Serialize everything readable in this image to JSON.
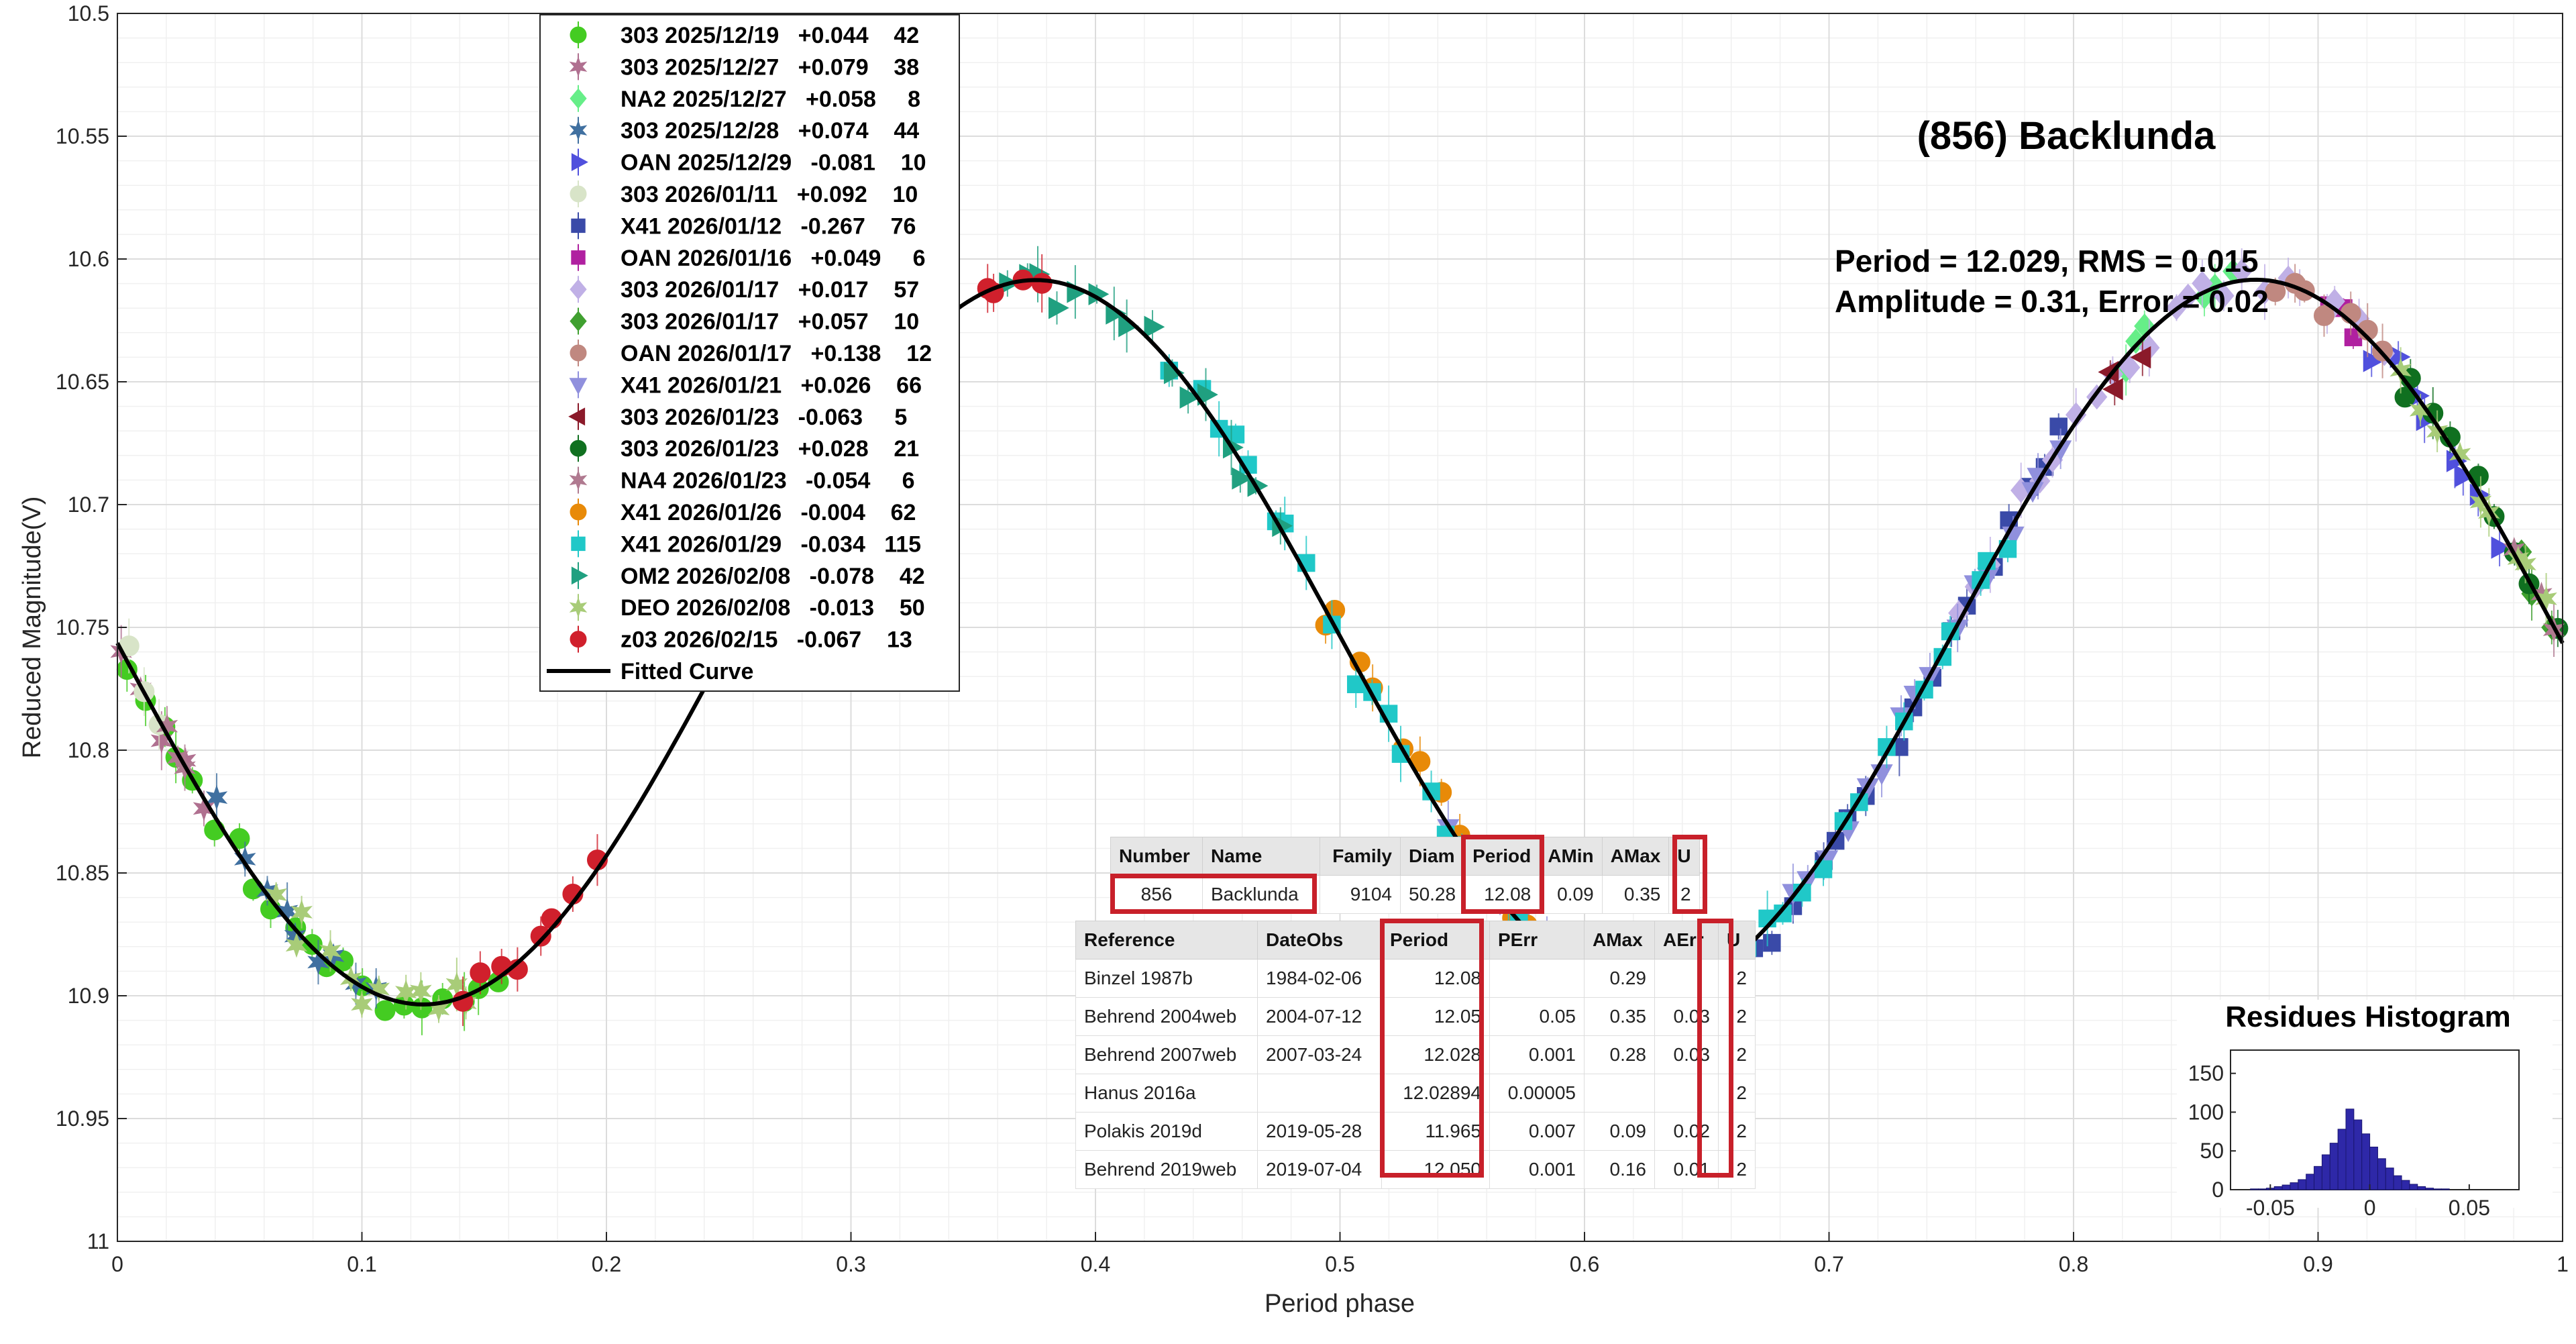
{
  "chart_data": {
    "type": "scatter",
    "title": "(856) Backlunda",
    "xlabel": "Period phase",
    "ylabel": "Reduced Magnitude(V)",
    "xlim": [
      0,
      1
    ],
    "ylim": [
      10.5,
      11
    ],
    "y_reversed": true,
    "grid": true,
    "x_ticks": [
      "0",
      "0.1",
      "0.2",
      "0.3",
      "0.4",
      "0.5",
      "0.6",
      "0.7",
      "0.8",
      "0.9",
      "1"
    ],
    "y_ticks": [
      "10.5",
      "10.55",
      "10.6",
      "10.65",
      "10.7",
      "10.75",
      "10.8",
      "10.85",
      "10.9",
      "10.95",
      "11"
    ],
    "stats_line1": "Period =  12.029, RMS = 0.015",
    "stats_line2": "Amplitude = 0.31, Error = 0.02",
    "fit": {
      "name": "Fitted Curve",
      "mean": 10.755,
      "terms": [
        [
          1,
          0.0014,
          0.0015
        ],
        [
          2,
          0.0,
          0.1465
        ]
      ]
    },
    "series": [
      {
        "label": "303 2025/12/19   +0.044    42",
        "color": "#44cc22",
        "marker": "circle",
        "ranges": [
          [
            0.0,
            0.06
          ],
          [
            0.06,
            0.16
          ]
        ]
      },
      {
        "label": "303 2025/12/27   +0.079    38",
        "color": "#b07090",
        "marker": "star",
        "ranges": [
          [
            0.0,
            0.04
          ]
        ]
      },
      {
        "label": "NA2 2025/12/27   +0.058     8",
        "color": "#66ee88",
        "marker": "diamond",
        "ranges": [
          [
            0.85,
            0.87
          ],
          [
            0.82,
            0.83
          ]
        ]
      },
      {
        "label": "303 2025/12/28   +0.074    44",
        "color": "#4070a0",
        "marker": "star",
        "ranges": [
          [
            0.04,
            0.11
          ]
        ]
      },
      {
        "label": "OAN 2025/12/29   -0.081    10",
        "color": "#5050dd",
        "marker": "tri-right",
        "ranges": [
          [
            0.92,
            0.98
          ]
        ]
      },
      {
        "label": "303 2026/01/11   +0.092    10",
        "color": "#d8e4c8",
        "marker": "circle",
        "ranges": [
          [
            0.0,
            0.02
          ]
        ]
      },
      {
        "label": "X41 2026/01/12   -0.267    76",
        "color": "#3a4aa8",
        "marker": "square",
        "ranges": [
          [
            0.63,
            0.8
          ]
        ]
      },
      {
        "label": "OAN 2026/01/16   +0.049     6",
        "color": "#b020a0",
        "marker": "square",
        "ranges": [
          [
            0.9,
            0.92
          ]
        ]
      },
      {
        "label": "303 2026/01/17   +0.017    57",
        "color": "#c0b0e6",
        "marker": "diamond",
        "ranges": [
          [
            0.75,
            0.93
          ]
        ]
      },
      {
        "label": "303 2026/01/17   +0.057    10",
        "color": "#40a030",
        "marker": "diamond",
        "ranges": [
          [
            0.98,
            1.0
          ]
        ]
      },
      {
        "label": "OAN 2026/01/17   +0.138    12",
        "color": "#c08880",
        "marker": "circle",
        "ranges": [
          [
            0.88,
            0.93
          ]
        ]
      },
      {
        "label": "X41 2026/01/21   +0.026    66",
        "color": "#9090dd",
        "marker": "tri-down",
        "ranges": [
          [
            0.54,
            0.62
          ],
          [
            0.68,
            0.8
          ]
        ]
      },
      {
        "label": "303 2026/01/23   -0.063     5",
        "color": "#8b1a2a",
        "marker": "tri-left",
        "ranges": [
          [
            0.81,
            0.83
          ]
        ]
      },
      {
        "label": "303 2026/01/23   +0.028    21",
        "color": "#107020",
        "marker": "circle",
        "ranges": [
          [
            0.93,
            1.0
          ]
        ]
      },
      {
        "label": "NA4 2026/01/23   -0.054     6",
        "color": "#b07a90",
        "marker": "star",
        "ranges": [
          [
            0.98,
            1.0
          ],
          [
            0.02,
            0.03
          ]
        ]
      },
      {
        "label": "X41 2026/01/26   -0.004    62",
        "color": "#e88a08",
        "marker": "circle",
        "ranges": [
          [
            0.49,
            0.62
          ]
        ]
      },
      {
        "label": "X41 2026/01/29   -0.034   115",
        "color": "#20c8c8",
        "marker": "square",
        "ranges": [
          [
            0.43,
            0.61
          ],
          [
            0.64,
            0.78
          ]
        ]
      },
      {
        "label": "OM2 2026/02/08   -0.078    42",
        "color": "#20a080",
        "marker": "tri-right",
        "ranges": [
          [
            0.36,
            0.48
          ]
        ]
      },
      {
        "label": "DEO 2026/02/08   -0.013    50",
        "color": "#a8cc78",
        "marker": "star",
        "ranges": [
          [
            0.06,
            0.15
          ],
          [
            0.93,
            1.0
          ]
        ]
      },
      {
        "label": "z03 2026/02/15   -0.067    13",
        "color": "#d0202c",
        "marker": "circle",
        "ranges": [
          [
            0.14,
            0.2
          ],
          [
            0.35,
            0.38
          ]
        ]
      }
    ],
    "histogram": {
      "title": "Residues Histogram",
      "x_ticks": [
        "-0.05",
        "0",
        "0.05"
      ],
      "y_ticks": [
        "0",
        "50",
        "100",
        "150"
      ],
      "xlim": [
        -0.07,
        0.075
      ],
      "ylim": [
        0,
        180
      ],
      "bin_start": -0.06,
      "bin_width": 0.004,
      "counts": [
        1,
        1,
        2,
        4,
        6,
        9,
        13,
        20,
        30,
        45,
        60,
        78,
        104,
        90,
        72,
        55,
        40,
        28,
        18,
        12,
        7,
        4,
        2,
        1,
        1,
        0,
        0,
        0,
        0,
        0,
        0
      ]
    }
  },
  "asteroid_table": {
    "headers": [
      "Number",
      "Name",
      "Family",
      "Diam",
      "Period",
      "AMin",
      "AMax",
      "U"
    ],
    "row": [
      "856",
      "Backlunda",
      "9104",
      "50.28",
      "12.08",
      "0.09",
      "0.35",
      "2"
    ]
  },
  "reference_table": {
    "headers": [
      "Reference",
      "DateObs",
      "Period",
      "PErr",
      "AMax",
      "AErr",
      "U"
    ],
    "rows": [
      [
        "Binzel 1987b",
        "1984-02-06",
        "12.08",
        "",
        "0.29",
        "",
        "2"
      ],
      [
        "Behrend 2004web",
        "2004-07-12",
        "12.05",
        "0.05",
        "0.35",
        "0.03",
        "2"
      ],
      [
        "Behrend 2007web",
        "2007-03-24",
        "12.028",
        "0.001",
        "0.28",
        "0.03",
        "2"
      ],
      [
        "Hanus 2016a",
        "",
        "12.02894",
        "0.00005",
        "",
        "",
        "2"
      ],
      [
        "Polakis 2019d",
        "2019-05-28",
        "11.965",
        "0.007",
        "0.09",
        "0.02",
        "2"
      ],
      [
        "Behrend 2019web",
        "2019-07-04",
        "12.050",
        "0.001",
        "0.16",
        "0.01",
        "2"
      ]
    ]
  }
}
